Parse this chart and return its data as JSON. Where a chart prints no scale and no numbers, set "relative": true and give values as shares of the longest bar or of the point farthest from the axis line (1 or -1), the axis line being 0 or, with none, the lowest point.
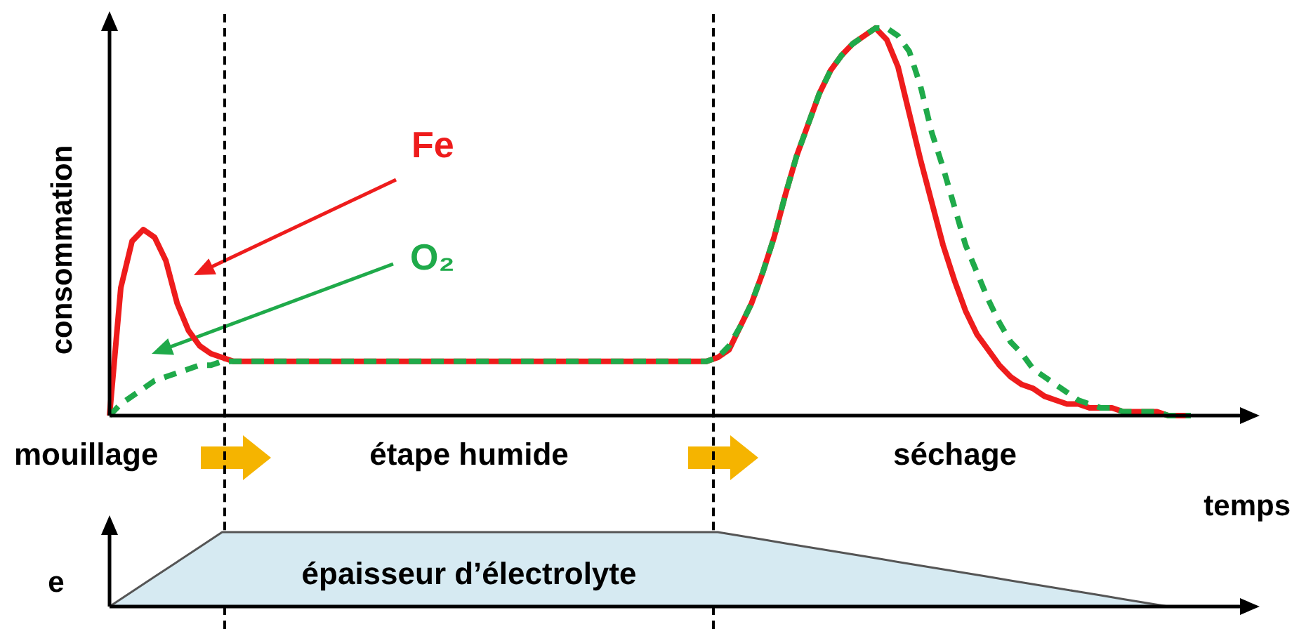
{
  "chart_data": [
    {
      "type": "line",
      "relative": true,
      "ylabel": "consommation",
      "annotations": [
        "mouillage",
        "étape humide",
        "séchage"
      ],
      "categories": [
        null,
        null,
        null,
        null,
        null,
        null,
        null,
        null,
        null,
        null,
        null,
        null,
        null,
        null,
        null,
        null,
        null,
        null,
        null,
        null,
        null,
        null,
        null,
        null,
        null,
        null,
        null,
        null,
        null,
        null,
        null,
        null,
        null,
        null,
        null,
        null,
        null,
        null,
        null,
        null,
        null,
        null,
        null,
        null,
        null,
        null,
        null,
        null,
        null,
        null,
        null,
        null,
        null,
        null,
        null,
        null,
        null,
        null,
        null,
        null,
        null,
        null,
        null,
        null,
        null,
        null,
        null,
        null,
        null,
        null,
        null,
        null,
        null,
        null,
        null,
        null,
        null,
        null,
        null,
        null,
        null,
        null,
        null,
        null,
        null,
        null,
        null,
        null,
        null,
        null,
        null,
        null,
        null,
        null,
        null,
        null,
        null
      ],
      "series": [
        {
          "name": "Fe",
          "color": "#ee1c1c",
          "line_style": "solid",
          "values": [
            0,
            0.33,
            0.45,
            0.48,
            0.46,
            0.4,
            0.29,
            0.22,
            0.18,
            0.16,
            0.15,
            0.14,
            0.14,
            0.14,
            0.14,
            0.14,
            0.14,
            0.14,
            0.14,
            0.14,
            0.14,
            0.14,
            0.14,
            0.14,
            0.14,
            0.14,
            0.14,
            0.14,
            0.14,
            0.14,
            0.14,
            0.14,
            0.14,
            0.14,
            0.14,
            0.14,
            0.14,
            0.14,
            0.14,
            0.14,
            0.14,
            0.14,
            0.14,
            0.14,
            0.14,
            0.14,
            0.14,
            0.14,
            0.14,
            0.14,
            0.14,
            0.14,
            0.14,
            0.14,
            0.15,
            0.17,
            0.23,
            0.29,
            0.37,
            0.46,
            0.57,
            0.67,
            0.75,
            0.83,
            0.89,
            0.93,
            0.96,
            0.98,
            1,
            0.97,
            0.9,
            0.78,
            0.66,
            0.55,
            0.44,
            0.35,
            0.27,
            0.21,
            0.17,
            0.13,
            0.1,
            0.08,
            0.07,
            0.05,
            0.04,
            0.03,
            0.03,
            0.02,
            0.02,
            0.02,
            0.01,
            0.01,
            0.01,
            0.01,
            0,
            0,
            0
          ]
        },
        {
          "name": "O₂",
          "color": "#1faa4a",
          "line_style": "dashed",
          "values": [
            0,
            0.03,
            0.05,
            0.07,
            0.09,
            0.1,
            0.11,
            0.12,
            0.13,
            0.13,
            0.14,
            0.14,
            0.14,
            0.14,
            0.14,
            0.14,
            0.14,
            0.14,
            0.14,
            0.14,
            0.14,
            0.14,
            0.14,
            0.14,
            0.14,
            0.14,
            0.14,
            0.14,
            0.14,
            0.14,
            0.14,
            0.14,
            0.14,
            0.14,
            0.14,
            0.14,
            0.14,
            0.14,
            0.14,
            0.14,
            0.14,
            0.14,
            0.14,
            0.14,
            0.14,
            0.14,
            0.14,
            0.14,
            0.14,
            0.14,
            0.14,
            0.14,
            0.14,
            0.14,
            0.15,
            0.18,
            0.23,
            0.29,
            0.37,
            0.46,
            0.57,
            0.67,
            0.75,
            0.83,
            0.89,
            0.93,
            0.96,
            0.98,
            1,
            1,
            0.98,
            0.94,
            0.85,
            0.73,
            0.64,
            0.54,
            0.44,
            0.37,
            0.3,
            0.24,
            0.19,
            0.16,
            0.12,
            0.1,
            0.08,
            0.06,
            0.04,
            0.03,
            0.02,
            0.02,
            0.01,
            0.01,
            0.01,
            0.01,
            0,
            0,
            0
          ]
        }
      ]
    },
    {
      "type": "area",
      "relative": true,
      "xlabel": "temps",
      "ylabel": "e",
      "annotations": [
        "épaisseur d’électrolyte"
      ],
      "categories": [
        null,
        null,
        null,
        null,
        null,
        null,
        null,
        null,
        null,
        null,
        null,
        null,
        null,
        null,
        null,
        null,
        null,
        null,
        null,
        null,
        null,
        null,
        null,
        null,
        null,
        null,
        null,
        null,
        null,
        null,
        null,
        null,
        null,
        null,
        null,
        null,
        null,
        null,
        null,
        null,
        null,
        null,
        null,
        null,
        null,
        null,
        null,
        null,
        null
      ],
      "values": [
        0,
        0.2,
        0.4,
        0.6,
        0.8,
        1,
        1,
        1,
        1,
        1,
        1,
        1,
        1,
        1,
        1,
        1,
        1,
        1,
        1,
        1,
        1,
        1,
        1,
        1,
        1,
        1,
        1,
        1,
        0.95,
        0.9,
        0.85,
        0.8,
        0.75,
        0.7,
        0.65,
        0.6,
        0.55,
        0.5,
        0.45,
        0.4,
        0.35,
        0.3,
        0.25,
        0.2,
        0.15,
        0.1,
        0.05,
        0,
        0
      ],
      "color": "#d6eaf2"
    }
  ]
}
